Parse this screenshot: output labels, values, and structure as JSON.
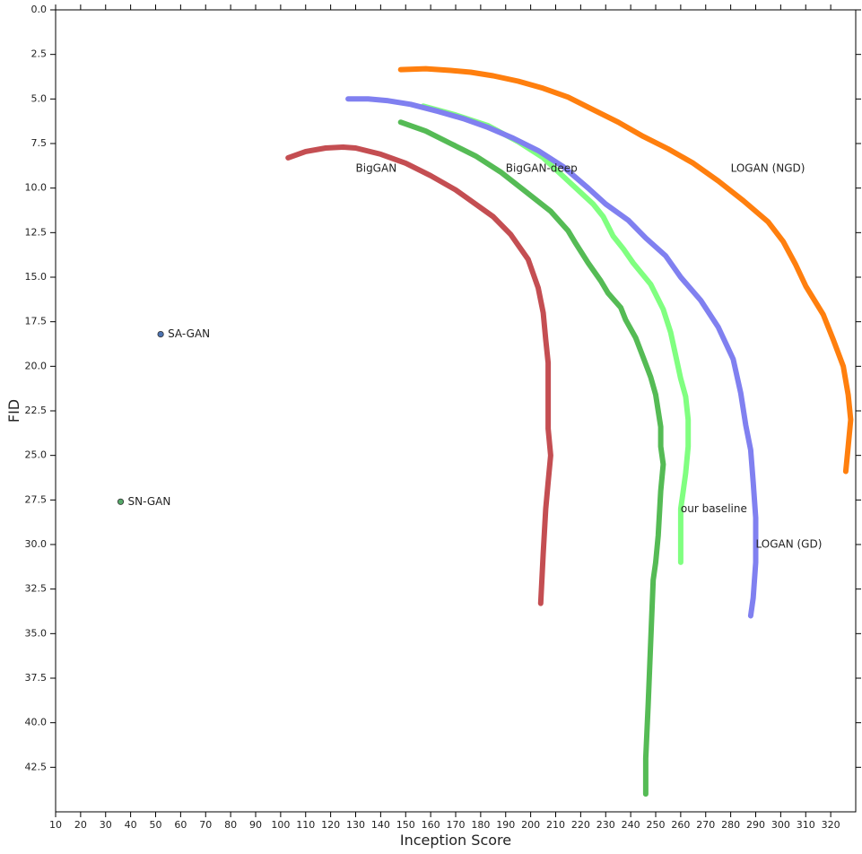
{
  "chart_data": {
    "type": "line",
    "title": "",
    "xlabel": "Inception Score",
    "ylabel": "FID",
    "xlim": [
      10,
      330
    ],
    "ylim": [
      45,
      0
    ],
    "y_inverted": true,
    "grid": false,
    "x_ticks": [
      10,
      20,
      30,
      40,
      50,
      60,
      70,
      80,
      90,
      100,
      110,
      120,
      130,
      140,
      150,
      160,
      170,
      180,
      190,
      200,
      210,
      220,
      230,
      240,
      250,
      260,
      270,
      280,
      290,
      300,
      310,
      320
    ],
    "y_ticks": [
      0.0,
      2.5,
      5.0,
      7.5,
      10.0,
      12.5,
      15.0,
      17.5,
      20.0,
      22.5,
      25.0,
      27.5,
      30.0,
      32.5,
      35.0,
      37.5,
      40.0,
      42.5
    ],
    "series": [
      {
        "name": "BigGAN",
        "color": "#c44e52",
        "label_at": [
          130,
          8.9
        ],
        "points": [
          [
            103,
            8.3
          ],
          [
            110,
            7.95
          ],
          [
            118,
            7.75
          ],
          [
            125,
            7.7
          ],
          [
            130,
            7.75
          ],
          [
            140,
            8.1
          ],
          [
            150,
            8.6
          ],
          [
            160,
            9.3
          ],
          [
            170,
            10.1
          ],
          [
            175,
            10.6
          ],
          [
            185,
            11.6
          ],
          [
            192,
            12.6
          ],
          [
            199,
            14.0
          ],
          [
            203,
            15.6
          ],
          [
            205,
            17.0
          ],
          [
            206,
            18.5
          ],
          [
            207,
            19.8
          ],
          [
            207,
            21.5
          ],
          [
            207,
            23.5
          ],
          [
            208,
            25.0
          ],
          [
            207,
            26.5
          ],
          [
            206,
            28.0
          ],
          [
            205,
            30.5
          ],
          [
            204,
            33.3
          ]
        ]
      },
      {
        "name": "BigGAN-deep",
        "color": "#55bb55",
        "label_at": [
          190,
          8.9
        ],
        "points": [
          [
            148,
            6.3
          ],
          [
            158,
            6.8
          ],
          [
            168,
            7.5
          ],
          [
            178,
            8.2
          ],
          [
            188,
            9.1
          ],
          [
            198,
            10.2
          ],
          [
            208,
            11.3
          ],
          [
            215,
            12.4
          ],
          [
            218,
            13.1
          ],
          [
            223,
            14.2
          ],
          [
            228,
            15.2
          ],
          [
            231,
            15.9
          ],
          [
            236,
            16.7
          ],
          [
            238,
            17.4
          ],
          [
            242,
            18.4
          ],
          [
            245,
            19.5
          ],
          [
            248,
            20.6
          ],
          [
            250,
            21.6
          ],
          [
            251,
            22.5
          ],
          [
            252,
            23.4
          ],
          [
            252,
            24.5
          ],
          [
            253,
            25.5
          ],
          [
            252,
            27.0
          ],
          [
            251,
            29.5
          ],
          [
            250,
            31.0
          ],
          [
            249,
            32.0
          ],
          [
            248,
            35.5
          ],
          [
            247,
            39.0
          ],
          [
            246,
            42.0
          ],
          [
            246,
            44.0
          ]
        ]
      },
      {
        "name": "our baseline",
        "color": "#80ff80",
        "label_at": [
          260,
          28.0
        ],
        "points": [
          [
            157,
            5.4
          ],
          [
            170,
            5.9
          ],
          [
            183,
            6.5
          ],
          [
            195,
            7.4
          ],
          [
            205,
            8.3
          ],
          [
            215,
            9.6
          ],
          [
            225,
            10.9
          ],
          [
            229,
            11.6
          ],
          [
            233,
            12.7
          ],
          [
            237,
            13.4
          ],
          [
            241,
            14.2
          ],
          [
            248,
            15.4
          ],
          [
            253,
            16.8
          ],
          [
            256,
            18.1
          ],
          [
            258,
            19.4
          ],
          [
            260,
            20.7
          ],
          [
            262,
            21.7
          ],
          [
            263,
            23.0
          ],
          [
            263,
            24.5
          ],
          [
            262,
            26.0
          ],
          [
            261,
            27.0
          ],
          [
            260,
            28.0
          ],
          [
            260,
            29.5
          ],
          [
            260,
            31.0
          ]
        ]
      },
      {
        "name": "LOGAN (GD)",
        "color": "#8080f0",
        "label_at": [
          290,
          30.0
        ],
        "points": [
          [
            127,
            5.0
          ],
          [
            135,
            5.0
          ],
          [
            143,
            5.1
          ],
          [
            152,
            5.3
          ],
          [
            163,
            5.7
          ],
          [
            173,
            6.1
          ],
          [
            183,
            6.6
          ],
          [
            193,
            7.2
          ],
          [
            203,
            7.9
          ],
          [
            213,
            8.8
          ],
          [
            223,
            10.0
          ],
          [
            230,
            10.9
          ],
          [
            239,
            11.8
          ],
          [
            246,
            12.8
          ],
          [
            254,
            13.8
          ],
          [
            260,
            15.0
          ],
          [
            268,
            16.3
          ],
          [
            275,
            17.8
          ],
          [
            281,
            19.6
          ],
          [
            284,
            21.5
          ],
          [
            286,
            23.3
          ],
          [
            288,
            24.7
          ],
          [
            289,
            26.5
          ],
          [
            290,
            28.5
          ],
          [
            290,
            31.0
          ],
          [
            289,
            33.0
          ],
          [
            288,
            34.0
          ]
        ]
      },
      {
        "name": "LOGAN (NGD)",
        "color": "#ff7f0e",
        "label_at": [
          280,
          8.9
        ],
        "points": [
          [
            148,
            3.35
          ],
          [
            158,
            3.3
          ],
          [
            168,
            3.4
          ],
          [
            176,
            3.5
          ],
          [
            185,
            3.7
          ],
          [
            195,
            4.0
          ],
          [
            205,
            4.4
          ],
          [
            215,
            4.9
          ],
          [
            225,
            5.6
          ],
          [
            235,
            6.3
          ],
          [
            245,
            7.1
          ],
          [
            255,
            7.8
          ],
          [
            265,
            8.6
          ],
          [
            275,
            9.6
          ],
          [
            285,
            10.7
          ],
          [
            295,
            11.9
          ],
          [
            301,
            13.0
          ],
          [
            306,
            14.3
          ],
          [
            310,
            15.5
          ],
          [
            317,
            17.1
          ],
          [
            321,
            18.5
          ],
          [
            325,
            20.0
          ],
          [
            327,
            21.6
          ],
          [
            328,
            23.0
          ],
          [
            327,
            24.5
          ],
          [
            326,
            25.9
          ]
        ]
      }
    ],
    "points": [
      {
        "name": "SA-GAN",
        "x": 52,
        "y": 18.2,
        "color": "#4c72b0"
      },
      {
        "name": "SN-GAN",
        "x": 36,
        "y": 27.6,
        "color": "#55a868"
      }
    ]
  }
}
